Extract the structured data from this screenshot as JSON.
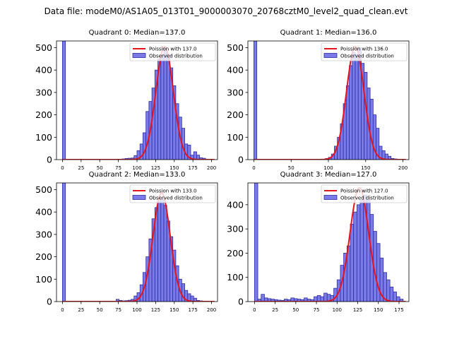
{
  "figure": {
    "suptitle": "Data file: modeM0/AS1A05_013T01_9000003070_20768cztM0_level2_quad_clean.evt"
  },
  "colors": {
    "bar_fill": "#7b7be8",
    "bar_edge": "#2c2ca8",
    "curve": "#e8141c",
    "axes": "#000000"
  },
  "chart_data": [
    {
      "type": "bar",
      "title": "Quadrant 0: Median=137.0",
      "xlim": [
        -8,
        208
      ],
      "ylim": [
        0,
        530
      ],
      "xticks": [
        0,
        25,
        50,
        75,
        100,
        125,
        150,
        175,
        200
      ],
      "yticks": [
        0,
        100,
        200,
        300,
        400,
        500
      ],
      "legend": {
        "position": "top-right",
        "curve_label": "Poission with 137.0",
        "bar_label": "Observed distribution"
      },
      "bin_width": 4,
      "bins": [
        [
          0,
          530
        ],
        [
          76,
          2
        ],
        [
          80,
          3
        ],
        [
          84,
          5
        ],
        [
          88,
          6
        ],
        [
          92,
          7
        ],
        [
          96,
          18
        ],
        [
          100,
          40
        ],
        [
          104,
          70
        ],
        [
          108,
          120
        ],
        [
          112,
          215
        ],
        [
          116,
          260
        ],
        [
          120,
          320
        ],
        [
          124,
          400
        ],
        [
          128,
          450
        ],
        [
          132,
          470
        ],
        [
          136,
          500
        ],
        [
          140,
          470
        ],
        [
          144,
          410
        ],
        [
          148,
          330
        ],
        [
          152,
          250
        ],
        [
          156,
          190
        ],
        [
          160,
          140
        ],
        [
          164,
          70
        ],
        [
          168,
          65
        ],
        [
          172,
          20
        ],
        [
          176,
          35
        ],
        [
          180,
          20
        ],
        [
          184,
          8
        ],
        [
          188,
          6
        ],
        [
          192,
          2
        ]
      ],
      "curve_mean": 137.0,
      "curve_peak": 505
    },
    {
      "type": "bar",
      "title": "Quadrant 1: Median=136.0",
      "xlim": [
        -8,
        208
      ],
      "ylim": [
        0,
        530
      ],
      "xticks": [
        0,
        50,
        100,
        150,
        200
      ],
      "yticks": [
        0,
        100,
        200,
        300,
        400,
        500
      ],
      "legend": {
        "position": "top-right",
        "curve_label": "Poission with 136.0",
        "bar_label": "Observed distribution"
      },
      "bin_width": 4,
      "bins": [
        [
          0,
          530
        ],
        [
          96,
          5
        ],
        [
          100,
          10
        ],
        [
          104,
          25
        ],
        [
          108,
          60
        ],
        [
          112,
          100
        ],
        [
          116,
          160
        ],
        [
          120,
          250
        ],
        [
          124,
          330
        ],
        [
          128,
          420
        ],
        [
          132,
          480
        ],
        [
          136,
          470
        ],
        [
          140,
          500
        ],
        [
          144,
          430
        ],
        [
          148,
          390
        ],
        [
          152,
          320
        ],
        [
          156,
          270
        ],
        [
          160,
          200
        ],
        [
          164,
          140
        ],
        [
          168,
          60
        ],
        [
          172,
          40
        ],
        [
          176,
          25
        ],
        [
          180,
          15
        ],
        [
          184,
          5
        ],
        [
          188,
          3
        ]
      ],
      "curve_mean": 136.0,
      "curve_peak": 505
    },
    {
      "type": "bar",
      "title": "Quadrant 2: Median=133.0",
      "xlim": [
        -8,
        208
      ],
      "ylim": [
        0,
        530
      ],
      "xticks": [
        0,
        25,
        50,
        75,
        100,
        125,
        150,
        175,
        200
      ],
      "yticks": [
        0,
        100,
        200,
        300,
        400,
        500
      ],
      "legend": {
        "position": "top-right",
        "curve_label": "Poission with 133.0",
        "bar_label": "Observed distribution"
      },
      "bin_width": 4,
      "bins": [
        [
          0,
          530
        ],
        [
          72,
          10
        ],
        [
          76,
          5
        ],
        [
          80,
          3
        ],
        [
          84,
          4
        ],
        [
          88,
          6
        ],
        [
          92,
          10
        ],
        [
          96,
          25
        ],
        [
          100,
          40
        ],
        [
          104,
          75
        ],
        [
          108,
          130
        ],
        [
          112,
          200
        ],
        [
          116,
          280
        ],
        [
          120,
          370
        ],
        [
          124,
          420
        ],
        [
          128,
          450
        ],
        [
          132,
          460
        ],
        [
          136,
          430
        ],
        [
          140,
          360
        ],
        [
          144,
          290
        ],
        [
          148,
          230
        ],
        [
          152,
          160
        ],
        [
          156,
          100
        ],
        [
          160,
          80
        ],
        [
          164,
          50
        ],
        [
          168,
          35
        ],
        [
          172,
          25
        ],
        [
          176,
          15
        ],
        [
          180,
          5
        ],
        [
          184,
          3
        ]
      ],
      "curve_mean": 133.0,
      "curve_peak": 485
    },
    {
      "type": "bar",
      "title": "Quadrant 3: Median=127.0",
      "xlim": [
        -8,
        187
      ],
      "ylim": [
        0,
        490
      ],
      "xticks": [
        0,
        25,
        50,
        75,
        100,
        125,
        150,
        175
      ],
      "yticks": [
        0,
        100,
        200,
        300,
        400
      ],
      "legend": {
        "position": "top-right",
        "curve_label": "Poission with 127.0",
        "bar_label": "Observed distribution"
      },
      "bin_width": 4,
      "bins": [
        [
          0,
          490
        ],
        [
          4,
          10
        ],
        [
          8,
          30
        ],
        [
          12,
          15
        ],
        [
          16,
          12
        ],
        [
          20,
          10
        ],
        [
          24,
          8
        ],
        [
          28,
          6
        ],
        [
          32,
          5
        ],
        [
          36,
          10
        ],
        [
          40,
          8
        ],
        [
          44,
          15
        ],
        [
          48,
          12
        ],
        [
          52,
          10
        ],
        [
          56,
          8
        ],
        [
          60,
          15
        ],
        [
          64,
          10
        ],
        [
          68,
          8
        ],
        [
          72,
          20
        ],
        [
          76,
          25
        ],
        [
          80,
          20
        ],
        [
          84,
          35
        ],
        [
          88,
          30
        ],
        [
          92,
          25
        ],
        [
          96,
          55
        ],
        [
          100,
          90
        ],
        [
          104,
          150
        ],
        [
          108,
          200
        ],
        [
          112,
          230
        ],
        [
          116,
          320
        ],
        [
          120,
          370
        ],
        [
          124,
          400
        ],
        [
          128,
          420
        ],
        [
          132,
          440
        ],
        [
          136,
          420
        ],
        [
          140,
          360
        ],
        [
          144,
          290
        ],
        [
          148,
          240
        ],
        [
          152,
          180
        ],
        [
          156,
          120
        ],
        [
          160,
          90
        ],
        [
          164,
          60
        ],
        [
          168,
          40
        ],
        [
          172,
          20
        ],
        [
          176,
          10
        ]
      ],
      "curve_mean": 127.0,
      "curve_peak": 470
    }
  ]
}
